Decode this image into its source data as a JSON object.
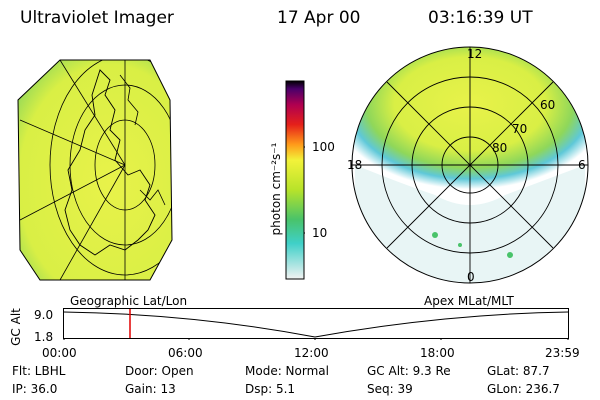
{
  "header": {
    "instrument": "Ultraviolet Imager",
    "date": "17 Apr 00",
    "time": "03:16:39 UT"
  },
  "colorbar": {
    "unit_label": "photon cm⁻²s⁻¹",
    "tick_100": "100",
    "tick_10": "10",
    "stops": [
      "#f2f2f2",
      "#3fd0c8",
      "#49c36a",
      "#b7e32a",
      "#f2f23a",
      "#ff9a1a",
      "#e5201a",
      "#b00050",
      "#4a006a",
      "#000000"
    ]
  },
  "globe_map": {
    "label": "Geographic Lat/Lon",
    "emission_color": "#e8f24a",
    "edge_color": "#5ec8d8"
  },
  "polar_map": {
    "label": "Apex MLat/MLT",
    "mlt_labels": {
      "top": "12",
      "left": "18",
      "right": "6",
      "bottom": "0"
    },
    "lat_labels": [
      "60",
      "70",
      "80"
    ]
  },
  "altitude_plot": {
    "ylabel": "GC Alt",
    "ytick_top": "9.0",
    "ytick_bottom": "1.8",
    "xticks": [
      "00:00",
      "06:00",
      "12:00",
      "18:00",
      "23:59"
    ],
    "marker_color": "#e00000",
    "marker_time_hours": 3.28
  },
  "status": {
    "flt": "Flt: LBHL",
    "door": "Door: Open",
    "mode": "Mode: Normal",
    "gc_alt": "GC Alt: 9.3 Re",
    "glat": "GLat:  87.7",
    "ip": "IP: 36.0",
    "gain": "Gain: 13",
    "dsp": "Dsp:    5.1",
    "seq": "Seq: 39",
    "glon": "GLon: 236.7"
  }
}
